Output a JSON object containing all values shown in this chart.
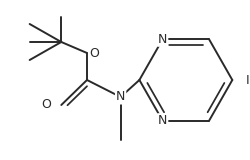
{
  "bg_color": "#ffffff",
  "line_color": "#2a2a2a",
  "figsize": [
    2.5,
    1.6
  ],
  "dpi": 100,
  "xlim": [
    0,
    250
  ],
  "ylim": [
    0,
    160
  ]
}
